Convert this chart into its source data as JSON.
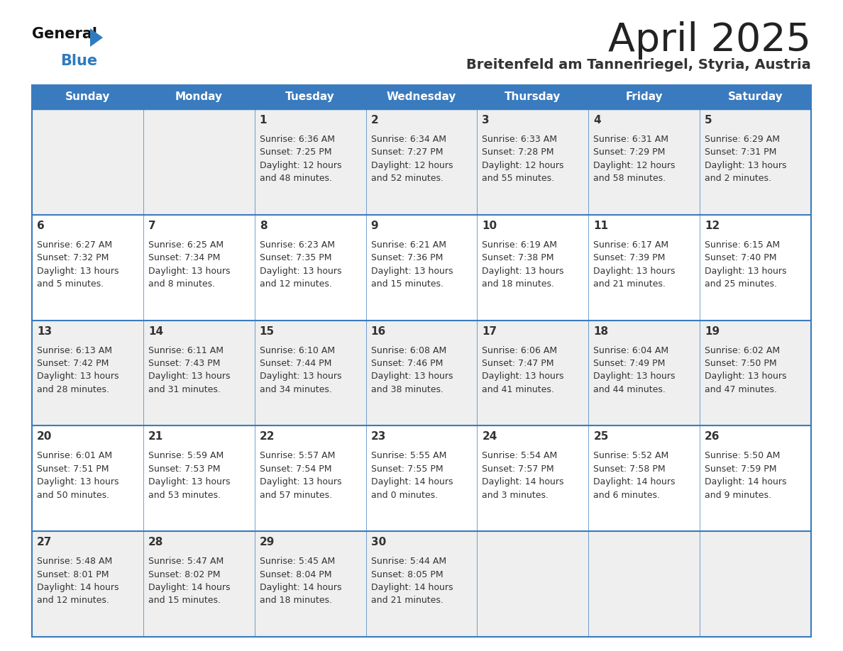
{
  "title": "April 2025",
  "subtitle": "Breitenfeld am Tannenriegel, Styria, Austria",
  "days_of_week": [
    "Sunday",
    "Monday",
    "Tuesday",
    "Wednesday",
    "Thursday",
    "Friday",
    "Saturday"
  ],
  "header_bg": "#3a7bbf",
  "header_text": "#ffffff",
  "row_bg_light": "#efefef",
  "row_bg_white": "#ffffff",
  "grid_line_color": "#3a7bbf",
  "text_color": "#333333",
  "title_color": "#222222",
  "subtitle_color": "#333333",
  "logo_general_color": "#111111",
  "logo_blue_color": "#2e7bbf",
  "weeks": [
    {
      "days": [
        {
          "date": "",
          "sunrise": "",
          "sunset": "",
          "daylight": ""
        },
        {
          "date": "",
          "sunrise": "",
          "sunset": "",
          "daylight": ""
        },
        {
          "date": "1",
          "sunrise": "Sunrise: 6:36 AM",
          "sunset": "Sunset: 7:25 PM",
          "daylight": "Daylight: 12 hours\nand 48 minutes."
        },
        {
          "date": "2",
          "sunrise": "Sunrise: 6:34 AM",
          "sunset": "Sunset: 7:27 PM",
          "daylight": "Daylight: 12 hours\nand 52 minutes."
        },
        {
          "date": "3",
          "sunrise": "Sunrise: 6:33 AM",
          "sunset": "Sunset: 7:28 PM",
          "daylight": "Daylight: 12 hours\nand 55 minutes."
        },
        {
          "date": "4",
          "sunrise": "Sunrise: 6:31 AM",
          "sunset": "Sunset: 7:29 PM",
          "daylight": "Daylight: 12 hours\nand 58 minutes."
        },
        {
          "date": "5",
          "sunrise": "Sunrise: 6:29 AM",
          "sunset": "Sunset: 7:31 PM",
          "daylight": "Daylight: 13 hours\nand 2 minutes."
        }
      ]
    },
    {
      "days": [
        {
          "date": "6",
          "sunrise": "Sunrise: 6:27 AM",
          "sunset": "Sunset: 7:32 PM",
          "daylight": "Daylight: 13 hours\nand 5 minutes."
        },
        {
          "date": "7",
          "sunrise": "Sunrise: 6:25 AM",
          "sunset": "Sunset: 7:34 PM",
          "daylight": "Daylight: 13 hours\nand 8 minutes."
        },
        {
          "date": "8",
          "sunrise": "Sunrise: 6:23 AM",
          "sunset": "Sunset: 7:35 PM",
          "daylight": "Daylight: 13 hours\nand 12 minutes."
        },
        {
          "date": "9",
          "sunrise": "Sunrise: 6:21 AM",
          "sunset": "Sunset: 7:36 PM",
          "daylight": "Daylight: 13 hours\nand 15 minutes."
        },
        {
          "date": "10",
          "sunrise": "Sunrise: 6:19 AM",
          "sunset": "Sunset: 7:38 PM",
          "daylight": "Daylight: 13 hours\nand 18 minutes."
        },
        {
          "date": "11",
          "sunrise": "Sunrise: 6:17 AM",
          "sunset": "Sunset: 7:39 PM",
          "daylight": "Daylight: 13 hours\nand 21 minutes."
        },
        {
          "date": "12",
          "sunrise": "Sunrise: 6:15 AM",
          "sunset": "Sunset: 7:40 PM",
          "daylight": "Daylight: 13 hours\nand 25 minutes."
        }
      ]
    },
    {
      "days": [
        {
          "date": "13",
          "sunrise": "Sunrise: 6:13 AM",
          "sunset": "Sunset: 7:42 PM",
          "daylight": "Daylight: 13 hours\nand 28 minutes."
        },
        {
          "date": "14",
          "sunrise": "Sunrise: 6:11 AM",
          "sunset": "Sunset: 7:43 PM",
          "daylight": "Daylight: 13 hours\nand 31 minutes."
        },
        {
          "date": "15",
          "sunrise": "Sunrise: 6:10 AM",
          "sunset": "Sunset: 7:44 PM",
          "daylight": "Daylight: 13 hours\nand 34 minutes."
        },
        {
          "date": "16",
          "sunrise": "Sunrise: 6:08 AM",
          "sunset": "Sunset: 7:46 PM",
          "daylight": "Daylight: 13 hours\nand 38 minutes."
        },
        {
          "date": "17",
          "sunrise": "Sunrise: 6:06 AM",
          "sunset": "Sunset: 7:47 PM",
          "daylight": "Daylight: 13 hours\nand 41 minutes."
        },
        {
          "date": "18",
          "sunrise": "Sunrise: 6:04 AM",
          "sunset": "Sunset: 7:49 PM",
          "daylight": "Daylight: 13 hours\nand 44 minutes."
        },
        {
          "date": "19",
          "sunrise": "Sunrise: 6:02 AM",
          "sunset": "Sunset: 7:50 PM",
          "daylight": "Daylight: 13 hours\nand 47 minutes."
        }
      ]
    },
    {
      "days": [
        {
          "date": "20",
          "sunrise": "Sunrise: 6:01 AM",
          "sunset": "Sunset: 7:51 PM",
          "daylight": "Daylight: 13 hours\nand 50 minutes."
        },
        {
          "date": "21",
          "sunrise": "Sunrise: 5:59 AM",
          "sunset": "Sunset: 7:53 PM",
          "daylight": "Daylight: 13 hours\nand 53 minutes."
        },
        {
          "date": "22",
          "sunrise": "Sunrise: 5:57 AM",
          "sunset": "Sunset: 7:54 PM",
          "daylight": "Daylight: 13 hours\nand 57 minutes."
        },
        {
          "date": "23",
          "sunrise": "Sunrise: 5:55 AM",
          "sunset": "Sunset: 7:55 PM",
          "daylight": "Daylight: 14 hours\nand 0 minutes."
        },
        {
          "date": "24",
          "sunrise": "Sunrise: 5:54 AM",
          "sunset": "Sunset: 7:57 PM",
          "daylight": "Daylight: 14 hours\nand 3 minutes."
        },
        {
          "date": "25",
          "sunrise": "Sunrise: 5:52 AM",
          "sunset": "Sunset: 7:58 PM",
          "daylight": "Daylight: 14 hours\nand 6 minutes."
        },
        {
          "date": "26",
          "sunrise": "Sunrise: 5:50 AM",
          "sunset": "Sunset: 7:59 PM",
          "daylight": "Daylight: 14 hours\nand 9 minutes."
        }
      ]
    },
    {
      "days": [
        {
          "date": "27",
          "sunrise": "Sunrise: 5:48 AM",
          "sunset": "Sunset: 8:01 PM",
          "daylight": "Daylight: 14 hours\nand 12 minutes."
        },
        {
          "date": "28",
          "sunrise": "Sunrise: 5:47 AM",
          "sunset": "Sunset: 8:02 PM",
          "daylight": "Daylight: 14 hours\nand 15 minutes."
        },
        {
          "date": "29",
          "sunrise": "Sunrise: 5:45 AM",
          "sunset": "Sunset: 8:04 PM",
          "daylight": "Daylight: 14 hours\nand 18 minutes."
        },
        {
          "date": "30",
          "sunrise": "Sunrise: 5:44 AM",
          "sunset": "Sunset: 8:05 PM",
          "daylight": "Daylight: 14 hours\nand 21 minutes."
        },
        {
          "date": "",
          "sunrise": "",
          "sunset": "",
          "daylight": ""
        },
        {
          "date": "",
          "sunrise": "",
          "sunset": "",
          "daylight": ""
        },
        {
          "date": "",
          "sunrise": "",
          "sunset": "",
          "daylight": ""
        }
      ]
    }
  ]
}
